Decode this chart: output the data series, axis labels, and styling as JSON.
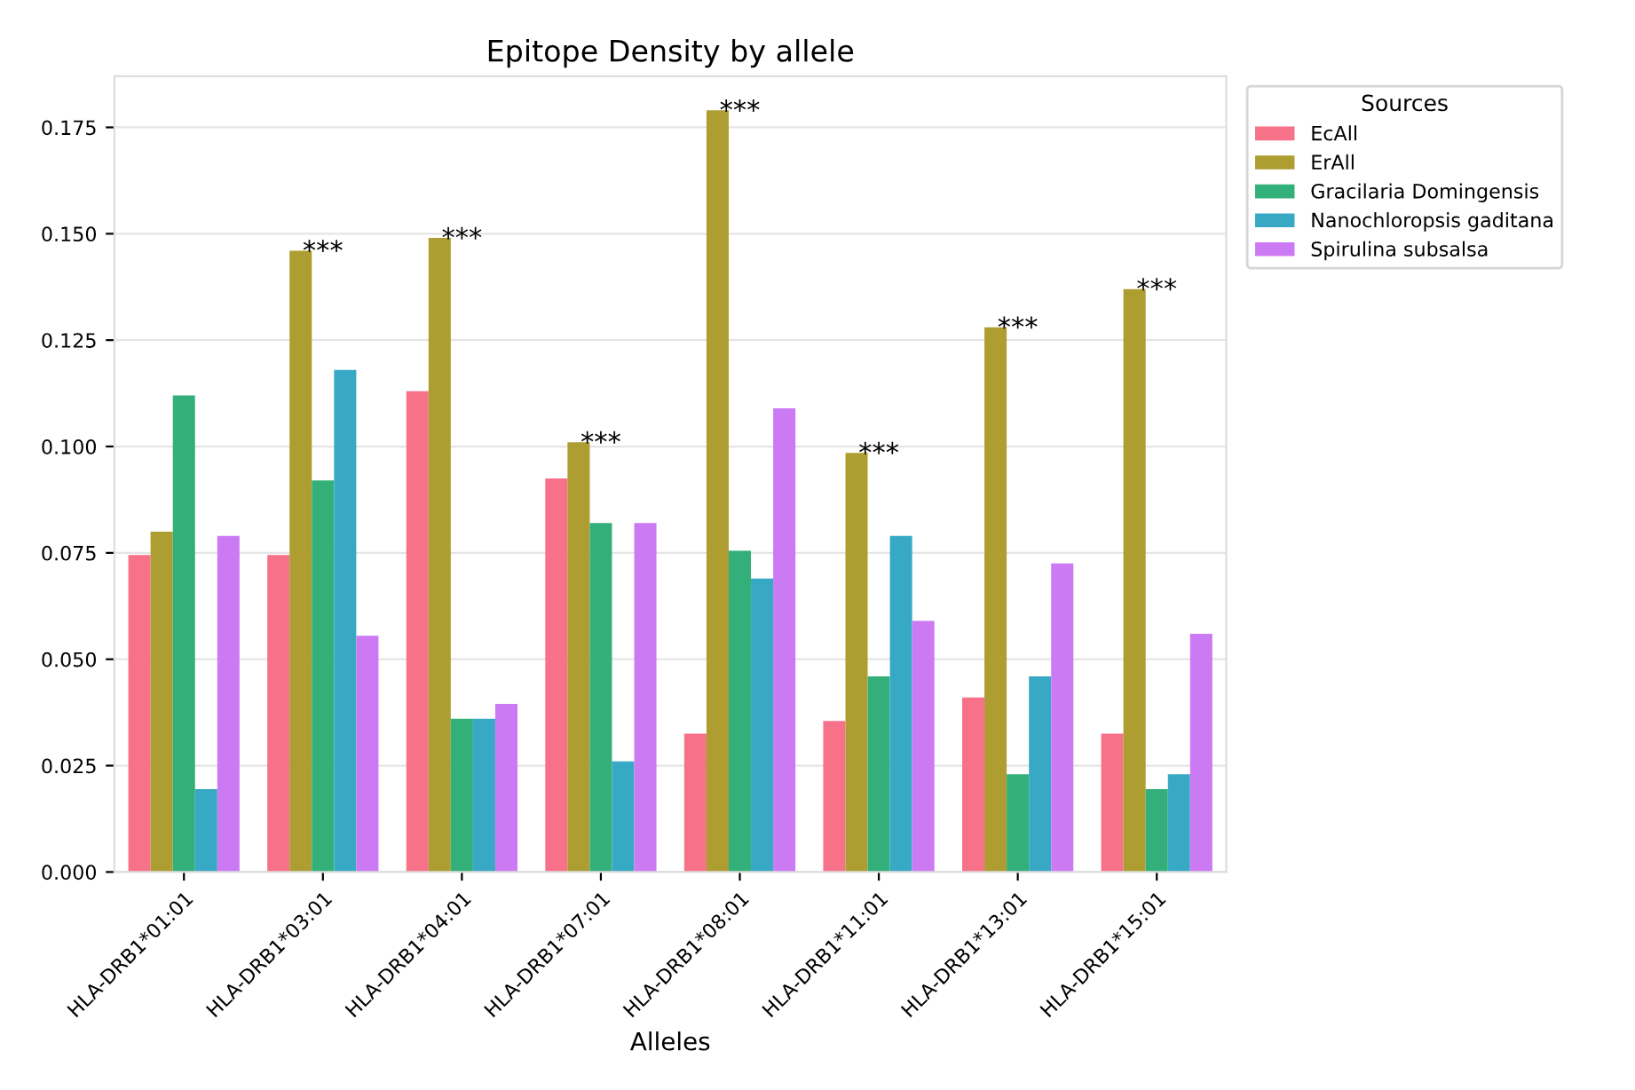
{
  "chart_data": {
    "type": "bar",
    "title": "Epitope Density by allele",
    "xlabel": "Alleles",
    "legend_title": "Sources",
    "categories": [
      "HLA-DRB1*01:01",
      "HLA-DRB1*03:01",
      "HLA-DRB1*04:01",
      "HLA-DRB1*07:01",
      "HLA-DRB1*08:01",
      "HLA-DRB1*11:01",
      "HLA-DRB1*13:01",
      "HLA-DRB1*15:01"
    ],
    "series": [
      {
        "name": "EcAll",
        "color": "#f77189",
        "values": [
          0.0745,
          0.0745,
          0.113,
          0.0925,
          0.0325,
          0.0355,
          0.041,
          0.0325
        ]
      },
      {
        "name": "ErAll",
        "color": "#ae9d31",
        "values": [
          0.08,
          0.146,
          0.149,
          0.101,
          0.179,
          0.0985,
          0.128,
          0.137
        ]
      },
      {
        "name": "Gracilaria Domingensis",
        "color": "#33b07a",
        "values": [
          0.112,
          0.092,
          0.036,
          0.082,
          0.0755,
          0.046,
          0.023,
          0.0195
        ]
      },
      {
        "name": "Nanochloropsis gaditana",
        "color": "#38a9c5",
        "values": [
          0.0195,
          0.118,
          0.036,
          0.026,
          0.069,
          0.079,
          0.046,
          0.023
        ]
      },
      {
        "name": "Spirulina subsalsa",
        "color": "#cc7af4",
        "values": [
          0.079,
          0.0555,
          0.0395,
          0.082,
          0.109,
          0.059,
          0.0725,
          0.056
        ]
      }
    ],
    "annotations": [
      "***",
      "***",
      "***",
      "***",
      "***",
      "***",
      "***"
    ],
    "ylim": [
      0,
      0.187
    ],
    "yticks": [
      {
        "value": 0,
        "label": "0.000"
      },
      {
        "value": 0.025,
        "label": "0.025"
      },
      {
        "value": 0.05,
        "label": "0.050"
      },
      {
        "value": 0.075,
        "label": "0.075"
      },
      {
        "value": 0.1,
        "label": "0.100"
      },
      {
        "value": 0.125,
        "label": "0.125"
      },
      {
        "value": 0.15,
        "label": "0.150"
      },
      {
        "value": 0.175,
        "label": "0.175"
      }
    ],
    "grid": "y",
    "legend": "top right"
  }
}
